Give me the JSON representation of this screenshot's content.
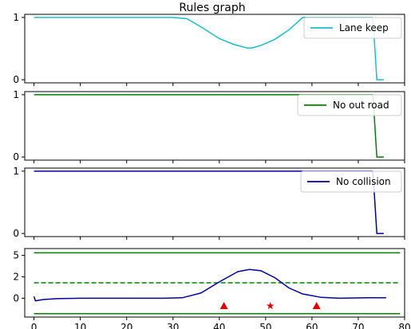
{
  "title": "Rules graph",
  "chart_data": [
    {
      "type": "line",
      "name": "Lane keep",
      "color": "#17becf",
      "legend": "Lane keep",
      "legend_position": "top-right",
      "ylim": [
        0,
        1
      ],
      "yticks": [
        0,
        1
      ],
      "xlim": [
        -2,
        80
      ],
      "x": [
        0,
        30,
        33,
        36,
        40,
        43,
        46,
        47,
        49,
        52,
        55,
        58,
        61,
        73,
        73.2,
        74,
        75.5
      ],
      "y": [
        1.0,
        1.0,
        0.98,
        0.85,
        0.66,
        0.57,
        0.51,
        0.51,
        0.55,
        0.65,
        0.8,
        1.0,
        1.0,
        1.0,
        0.95,
        0.0,
        0.0
      ]
    },
    {
      "type": "line",
      "name": "No out road",
      "color": "#008000",
      "legend": "No out road",
      "legend_position": "top-right",
      "ylim": [
        0,
        1
      ],
      "yticks": [
        0,
        1
      ],
      "xlim": [
        -2,
        80
      ],
      "x": [
        0,
        73,
        73.2,
        74,
        75.5
      ],
      "y": [
        1.0,
        1.0,
        0.95,
        0.0,
        0.0
      ]
    },
    {
      "type": "line",
      "name": "No collision",
      "color": "#0000a0",
      "legend": "No collision",
      "legend_position": "top-right",
      "ylim": [
        0,
        1
      ],
      "yticks": [
        0,
        1
      ],
      "xlim": [
        -2,
        80
      ],
      "x": [
        0,
        73,
        73.2,
        74,
        75.5
      ],
      "y": [
        1.0,
        1.0,
        0.95,
        0.0,
        0.0
      ]
    },
    {
      "type": "line",
      "ylim": [
        -2.2,
        5.8
      ],
      "yticks": [
        0,
        2.5,
        5
      ],
      "ytick_labels": [
        "0",
        "2",
        "5"
      ],
      "xlim": [
        -2,
        80
      ],
      "xticks": [
        0,
        10,
        20,
        30,
        40,
        50,
        60,
        70,
        80
      ],
      "xtick_labels": [
        "0",
        "10",
        "20",
        "30",
        "40",
        "50",
        "60",
        "70",
        "80"
      ],
      "series": [
        {
          "style": "solid",
          "color": "#008000",
          "x": [
            0,
            79
          ],
          "y": [
            5.3,
            5.3
          ]
        },
        {
          "style": "dashed",
          "color": "#008000",
          "x": [
            0,
            79
          ],
          "y": [
            1.8,
            1.8
          ]
        },
        {
          "style": "solid",
          "color": "#008000",
          "x": [
            0,
            79
          ],
          "y": [
            -1.8,
            -1.8
          ]
        },
        {
          "style": "solid",
          "color": "#0000a0",
          "x": [
            0,
            0.3,
            2,
            5,
            10,
            20,
            28,
            32,
            36,
            40,
            44,
            46.5,
            49,
            52,
            55,
            58,
            62,
            66,
            72,
            76
          ],
          "y": [
            0.2,
            -0.3,
            -0.15,
            -0.05,
            0.0,
            0.0,
            0.0,
            0.05,
            0.6,
            1.9,
            3.1,
            3.35,
            3.2,
            2.4,
            1.2,
            0.5,
            0.1,
            0.0,
            0.05,
            0.05
          ]
        }
      ],
      "markers": [
        {
          "shape": "triangle",
          "color": "#e00000",
          "x": 41,
          "y": -0.9
        },
        {
          "shape": "star",
          "color": "#e00000",
          "x": 51,
          "y": -0.9
        },
        {
          "shape": "triangle",
          "color": "#e00000",
          "x": 61,
          "y": -0.9
        }
      ]
    }
  ]
}
